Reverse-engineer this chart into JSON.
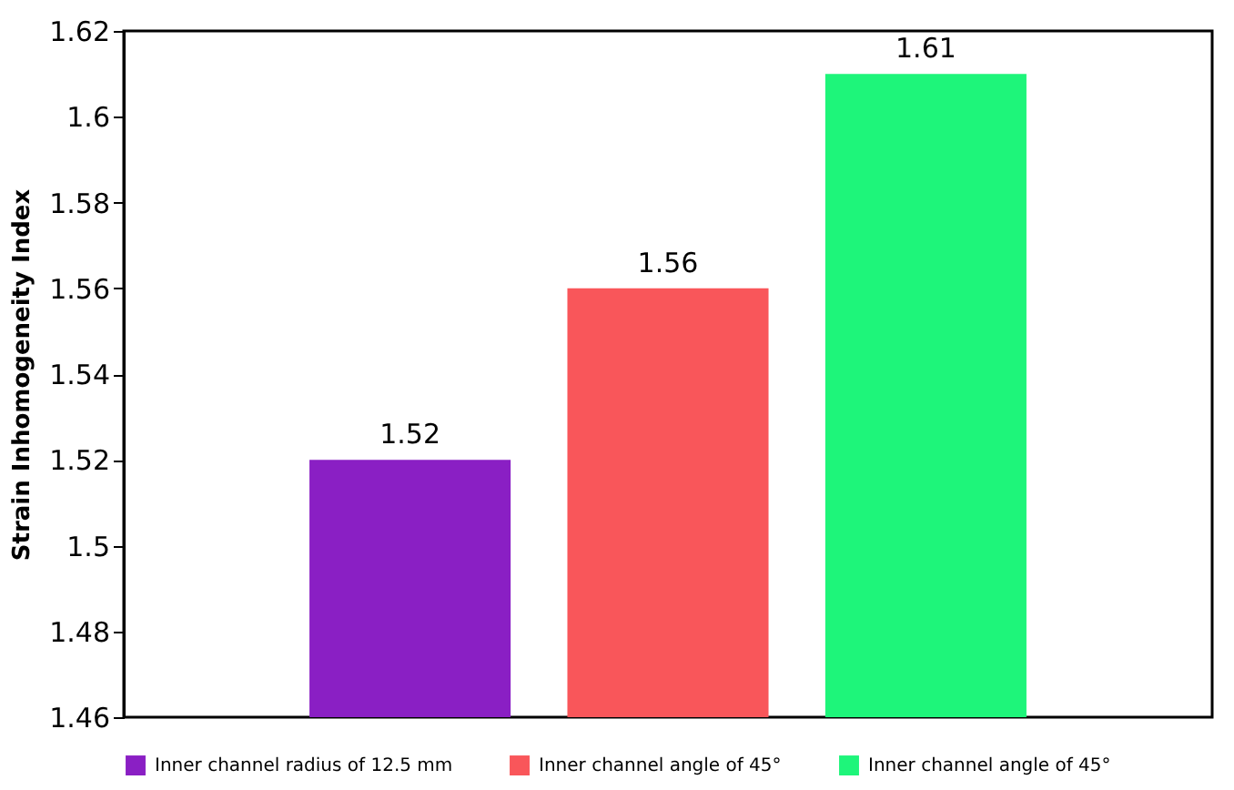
{
  "chart_data": {
    "type": "bar",
    "ylabel": "Strain Inhomogeneity Index",
    "categories": [
      null,
      null,
      null
    ],
    "series": [
      {
        "name": "Inner channel radius of 12.5 mm",
        "color": "#8a1fc4",
        "values": [
          1.52,
          null,
          null
        ]
      },
      {
        "name": "Inner channel angle of 45°",
        "color": "#f9565a",
        "values": [
          null,
          1.56,
          null
        ]
      },
      {
        "name": "Inner channel angle of 45°",
        "color": "#1ef57a",
        "values": [
          null,
          null,
          1.61
        ]
      }
    ],
    "ylim": [
      1.46,
      1.62
    ],
    "yticks": [
      1.46,
      1.48,
      1.5,
      1.52,
      1.54,
      1.56,
      1.58,
      1.6,
      1.62
    ],
    "grid": false,
    "legend": "bottom",
    "stacked": true,
    "data_labels": true
  }
}
